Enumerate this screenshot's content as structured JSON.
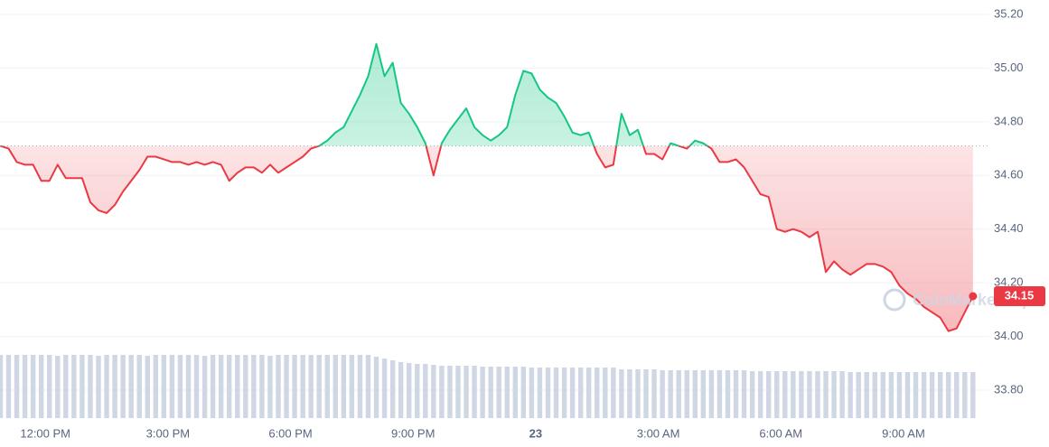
{
  "chart_data": {
    "type": "line",
    "x": [
      10.9,
      11.1,
      11.3,
      11.5,
      11.7,
      11.9,
      12.1,
      12.3,
      12.5,
      12.7,
      12.9,
      13.1,
      13.3,
      13.5,
      13.7,
      13.9,
      14.1,
      14.3,
      14.5,
      14.7,
      14.9,
      15.1,
      15.3,
      15.5,
      15.7,
      15.9,
      16.1,
      16.3,
      16.5,
      16.7,
      16.9,
      17.1,
      17.3,
      17.5,
      17.7,
      17.9,
      18.1,
      18.3,
      18.5,
      18.7,
      18.9,
      19.1,
      19.3,
      19.5,
      19.7,
      19.9,
      20.1,
      20.3,
      20.5,
      20.7,
      20.9,
      21.1,
      21.3,
      21.5,
      21.7,
      21.9,
      22.1,
      22.3,
      22.5,
      22.7,
      22.9,
      23.1,
      23.3,
      23.5,
      23.7,
      23.9,
      24.1,
      24.3,
      24.5,
      24.7,
      24.9,
      25.1,
      25.3,
      25.5,
      25.7,
      25.9,
      26.1,
      26.3,
      26.5,
      26.7,
      26.9,
      27.1,
      27.3,
      27.5,
      27.7,
      27.9,
      28.1,
      28.3,
      28.5,
      28.7,
      28.9,
      29.1,
      29.3,
      29.5,
      29.7,
      29.9,
      30.1,
      30.3,
      30.5,
      30.7,
      30.9,
      31.1,
      31.3,
      31.5,
      31.7,
      31.9,
      32.1,
      32.3,
      32.5,
      32.7,
      32.9,
      33.1,
      33.3,
      33.5,
      33.7,
      33.9,
      34.1,
      34.3,
      34.5,
      34.7
    ],
    "values": [
      34.71,
      34.7,
      34.65,
      34.64,
      34.64,
      34.58,
      34.58,
      34.64,
      34.59,
      34.59,
      34.59,
      34.5,
      34.47,
      34.46,
      34.49,
      34.54,
      34.58,
      34.62,
      34.67,
      34.67,
      34.66,
      34.65,
      34.65,
      34.64,
      34.65,
      34.64,
      34.65,
      34.64,
      34.58,
      34.61,
      34.63,
      34.63,
      34.61,
      34.64,
      34.61,
      34.63,
      34.65,
      34.67,
      34.7,
      34.71,
      34.73,
      34.76,
      34.78,
      34.84,
      34.9,
      34.97,
      35.09,
      34.97,
      35.02,
      34.87,
      34.83,
      34.78,
      34.72,
      34.6,
      34.72,
      34.77,
      34.81,
      34.85,
      34.78,
      34.75,
      34.73,
      34.75,
      34.78,
      34.9,
      34.99,
      34.98,
      34.92,
      34.89,
      34.87,
      34.82,
      34.76,
      34.75,
      34.76,
      34.68,
      34.63,
      34.64,
      34.83,
      34.75,
      34.77,
      34.68,
      34.68,
      34.66,
      34.72,
      34.71,
      34.7,
      34.73,
      34.72,
      34.7,
      34.65,
      34.65,
      34.66,
      34.63,
      34.58,
      34.53,
      34.52,
      34.4,
      34.39,
      34.4,
      34.39,
      34.37,
      34.39,
      34.24,
      34.28,
      34.25,
      34.23,
      34.25,
      34.27,
      34.27,
      34.26,
      34.24,
      34.19,
      34.16,
      34.14,
      34.11,
      34.09,
      34.07,
      34.02,
      34.03,
      34.09,
      34.15
    ],
    "volume": [
      70,
      70,
      70,
      70,
      70,
      70,
      70,
      69,
      70,
      70,
      70,
      70,
      69,
      70,
      70,
      70,
      70,
      70,
      69,
      70,
      70,
      70,
      70,
      70,
      70,
      69,
      70,
      70,
      70,
      70,
      70,
      70,
      70,
      69,
      70,
      70,
      70,
      70,
      70,
      70,
      70,
      70,
      70,
      70,
      70,
      70,
      68,
      66,
      64,
      62,
      61,
      60,
      60,
      59,
      58,
      58,
      58,
      58,
      58,
      57,
      57,
      57,
      57,
      57,
      57,
      56,
      56,
      56,
      56,
      56,
      56,
      56,
      56,
      56,
      56,
      56,
      54,
      54,
      54,
      54,
      54,
      53,
      53,
      53,
      53,
      53,
      53,
      53,
      53,
      53,
      53,
      53,
      52,
      52,
      52,
      52,
      52,
      52,
      52,
      52,
      52,
      52,
      52,
      52,
      51,
      51,
      51,
      51,
      51,
      51,
      51,
      51,
      51,
      51,
      51,
      51,
      51,
      51,
      51,
      51
    ],
    "reference_price": 34.71,
    "up_color": "#16c784",
    "down_color": "#ea3943",
    "volume_color": "#cfd6e4",
    "current_price_label": "34.15",
    "watermark": "CoinMarketCap",
    "xlim": [
      10.89,
      34.77
    ],
    "xticks": [
      {
        "value": 12,
        "label": "12:00 PM"
      },
      {
        "value": 15,
        "label": "3:00 PM"
      },
      {
        "value": 18,
        "label": "6:00 PM"
      },
      {
        "value": 21,
        "label": "9:00 PM"
      },
      {
        "value": 24,
        "label": "23"
      },
      {
        "value": 27,
        "label": "3:00 AM"
      },
      {
        "value": 30,
        "label": "6:00 AM"
      },
      {
        "value": 33,
        "label": "9:00 AM"
      }
    ],
    "ylim": [
      33.8,
      35.2
    ],
    "yticks": [
      {
        "value": 35.2,
        "label": "35.20"
      },
      {
        "value": 35.0,
        "label": "35.00"
      },
      {
        "value": 34.8,
        "label": "34.80"
      },
      {
        "value": 34.6,
        "label": "34.60"
      },
      {
        "value": 34.4,
        "label": "34.40"
      },
      {
        "value": 34.2,
        "label": "34.20"
      },
      {
        "value": 34.0,
        "label": "34.00"
      },
      {
        "value": 33.8,
        "label": "33.80"
      }
    ],
    "grid": true
  }
}
